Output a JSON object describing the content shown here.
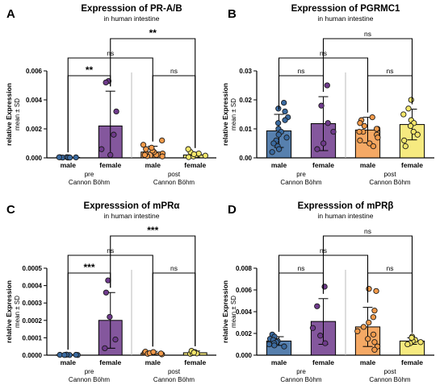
{
  "figure": {
    "panels": [
      "A",
      "B",
      "C",
      "D"
    ]
  },
  "chart_data": [
    {
      "panel": "A",
      "type": "bar",
      "title": "Expresssion of PR-A/B",
      "subtitle": "in human intestine",
      "ylabel": "relative Expression",
      "ylabel2": "mean ± SD",
      "ylim": [
        0,
        0.006
      ],
      "yticks": [
        "0.000",
        "0.002",
        "0.004",
        "0.006"
      ],
      "categories": [
        "male",
        "female",
        "male",
        "female"
      ],
      "groups": [
        {
          "label": "pre",
          "sub": "Cannon Böhm"
        },
        {
          "label": "post",
          "sub": "Cannon Böhm"
        }
      ],
      "colors": [
        "#3a6aa0",
        "#6f3a8c",
        "#f39a4a",
        "#f4e66a"
      ],
      "values": [
        3e-05,
        0.0022,
        0.0004,
        0.0002
      ],
      "sd": [
        2e-05,
        0.0024,
        0.0004,
        0.00015
      ],
      "points": [
        [
          2e-05,
          3e-05,
          4e-05,
          2e-05,
          5e-05,
          3e-05,
          4e-05,
          3e-05,
          2e-05
        ],
        [
          0.0053,
          0.0052,
          0.0032,
          0.0016,
          0.0006,
          0.0002
        ],
        [
          0.00012,
          0.0002,
          0.0003,
          0.0004,
          0.0005,
          0.0006,
          0.0009,
          0.0012,
          0.0003,
          0.0002,
          0.0007,
          0.0001
        ],
        [
          5e-05,
          0.0001,
          0.0002,
          0.0003,
          0.0004,
          0.0006,
          0.00015,
          0.00025
        ]
      ],
      "brackets": [
        {
          "from": 0,
          "to": 1,
          "label": "**",
          "level": 1
        },
        {
          "from": 0,
          "to": 2,
          "label": "ns",
          "level": 2
        },
        {
          "from": 2,
          "to": 3,
          "label": "ns",
          "level": 1
        },
        {
          "from": 1,
          "to": 3,
          "label": "**",
          "level": 3
        }
      ]
    },
    {
      "panel": "B",
      "type": "bar",
      "title": "Expresssion of PGRMC1",
      "subtitle": "in human intestine",
      "ylabel": "relative Expression",
      "ylabel2": "mean ± SD",
      "ylim": [
        0,
        0.03
      ],
      "yticks": [
        "0.00",
        "0.01",
        "0.02",
        "0.03"
      ],
      "categories": [
        "male",
        "female",
        "male",
        "female"
      ],
      "groups": [
        {
          "label": "pre",
          "sub": "Cannon Böhm"
        },
        {
          "label": "post",
          "sub": "Cannon Böhm"
        }
      ],
      "colors": [
        "#3a6aa0",
        "#6f3a8c",
        "#f39a4a",
        "#f4e66a"
      ],
      "values": [
        0.0093,
        0.0118,
        0.0096,
        0.0115
      ],
      "sd": [
        0.0057,
        0.0093,
        0.0044,
        0.0053
      ],
      "points": [
        [
          0.019,
          0.017,
          0.016,
          0.014,
          0.013,
          0.012,
          0.01,
          0.009,
          0.008,
          0.007,
          0.006,
          0.005,
          0.004,
          0.003,
          0.002
        ],
        [
          0.025,
          0.018,
          0.012,
          0.009,
          0.005,
          0.003
        ],
        [
          0.014,
          0.013,
          0.012,
          0.011,
          0.01,
          0.01,
          0.009,
          0.009,
          0.008,
          0.007,
          0.006,
          0.005,
          0.004
        ],
        [
          0.02,
          0.017,
          0.015,
          0.013,
          0.012,
          0.011,
          0.009,
          0.008,
          0.006,
          0.004
        ]
      ],
      "brackets": [
        {
          "from": 0,
          "to": 1,
          "label": "ns",
          "level": 1
        },
        {
          "from": 0,
          "to": 2,
          "label": "ns",
          "level": 2
        },
        {
          "from": 2,
          "to": 3,
          "label": "ns",
          "level": 1
        },
        {
          "from": 1,
          "to": 3,
          "label": "ns",
          "level": 3
        }
      ]
    },
    {
      "panel": "C",
      "type": "bar",
      "title": "Expresssion of mPRα",
      "subtitle": "in human intestine",
      "ylabel": "relative Expression",
      "ylabel2": "mean ± SD",
      "ylim": [
        0,
        0.0005
      ],
      "yticks": [
        "0.0000",
        "0.0001",
        "0.0002",
        "0.0003",
        "0.0004",
        "0.0005"
      ],
      "categories": [
        "male",
        "female",
        "male",
        "female"
      ],
      "groups": [
        {
          "label": "pre",
          "sub": "Cannon Böhm"
        },
        {
          "label": "post",
          "sub": "Cannon Böhm"
        }
      ],
      "colors": [
        "#3a6aa0",
        "#6f3a8c",
        "#f39a4a",
        "#f4e66a"
      ],
      "values": [
        2e-06,
        0.0002,
        1.2e-05,
        1.4e-05
      ],
      "sd": [
        2e-06,
        0.00016,
        1e-05,
        1e-05
      ],
      "points": [
        [
          1e-06,
          2e-06,
          3e-06,
          1e-06,
          2e-06,
          3e-06,
          2e-06,
          1e-06
        ],
        [
          0.00043,
          0.00036,
          0.00022,
          9e-05,
          4e-05
        ],
        [
          5e-06,
          1e-05,
          1.5e-05,
          2e-05,
          8e-06,
          1.2e-05,
          1.8e-05
        ],
        [
          8e-06,
          1.2e-05,
          1.8e-05,
          2.5e-05,
          1e-05,
          1.5e-05
        ]
      ],
      "brackets": [
        {
          "from": 0,
          "to": 1,
          "label": "***",
          "level": 1
        },
        {
          "from": 0,
          "to": 2,
          "label": "ns",
          "level": 2
        },
        {
          "from": 2,
          "to": 3,
          "label": "ns",
          "level": 1
        },
        {
          "from": 1,
          "to": 3,
          "label": "***",
          "level": 3
        }
      ]
    },
    {
      "panel": "D",
      "type": "bar",
      "title": "Expresssion of mPRβ",
      "subtitle": "in human intestine",
      "ylabel": "relative Expression",
      "ylabel2": "mean ± SD",
      "ylim": [
        0,
        0.008
      ],
      "yticks": [
        "0.000",
        "0.002",
        "0.004",
        "0.006",
        "0.008"
      ],
      "categories": [
        "male",
        "female",
        "male",
        "female"
      ],
      "groups": [
        {
          "label": "pre",
          "sub": "Cannon Böhm"
        },
        {
          "label": "post",
          "sub": "Cannon Böhm"
        }
      ],
      "colors": [
        "#3a6aa0",
        "#6f3a8c",
        "#f39a4a",
        "#f4e66a"
      ],
      "values": [
        0.0013,
        0.0031,
        0.0026,
        0.0013
      ],
      "sd": [
        0.0004,
        0.0021,
        0.0018,
        0.0003
      ],
      "points": [
        [
          0.0019,
          0.0017,
          0.0015,
          0.0014,
          0.0013,
          0.0012,
          0.0011,
          0.001,
          0.0009,
          0.0008
        ],
        [
          0.0063,
          0.0045,
          0.0025,
          0.0018,
          0.0011
        ],
        [
          0.0061,
          0.0059,
          0.0041,
          0.0035,
          0.003,
          0.0026,
          0.0022,
          0.0019,
          0.0015,
          0.0012,
          0.0008,
          0.0005
        ],
        [
          0.0017,
          0.0015,
          0.0014,
          0.0013,
          0.0012,
          0.0011,
          0.001,
          0.0016
        ]
      ],
      "brackets": [
        {
          "from": 0,
          "to": 1,
          "label": "ns",
          "level": 1
        },
        {
          "from": 0,
          "to": 2,
          "label": "ns",
          "level": 2
        },
        {
          "from": 2,
          "to": 3,
          "label": "ns",
          "level": 1
        },
        {
          "from": 1,
          "to": 3,
          "label": "ns",
          "level": 3
        }
      ]
    }
  ]
}
